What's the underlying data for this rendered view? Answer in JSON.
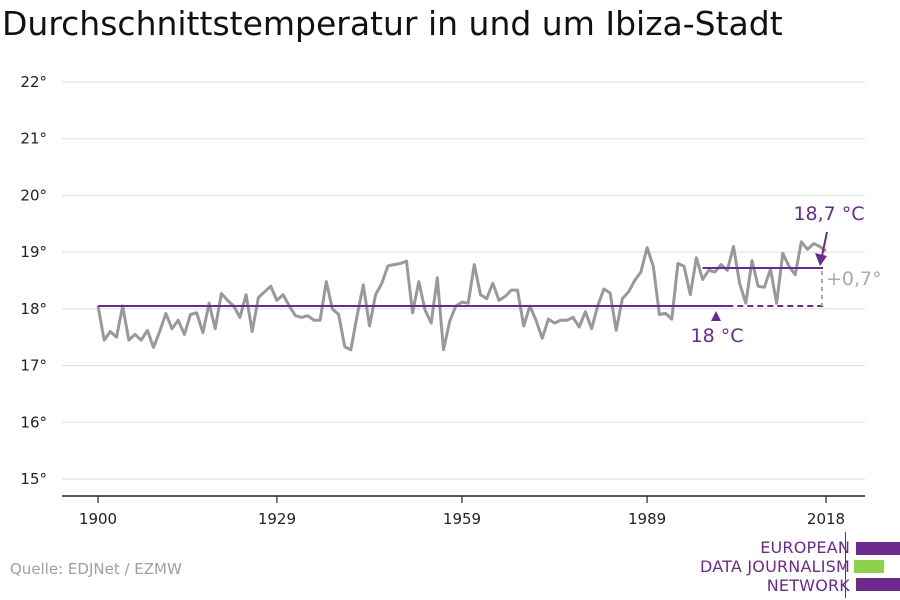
{
  "title": "Durchschnittstemperatur in und um Ibiza-Stadt",
  "source": "Quelle: EDJNet / EZMW",
  "logo": {
    "line1": "EUROPEAN",
    "line2": "DATA JOURNALISM",
    "line3": "NETWORK"
  },
  "colors": {
    "series": "#999999",
    "reference": "#6b2a8c",
    "grid": "#dddddd",
    "axis": "#222222",
    "diff": "#aaaaaa"
  },
  "chart_data": {
    "type": "line",
    "title": "Durchschnittstemperatur in und um Ibiza-Stadt",
    "xlabel": "",
    "ylabel": "",
    "xlim": [
      1900,
      2018
    ],
    "ylim": [
      15,
      22
    ],
    "x_ticks": [
      1900,
      1929,
      1959,
      1989,
      2018
    ],
    "y_ticks": [
      15,
      16,
      17,
      18,
      19,
      20,
      21,
      22
    ],
    "y_tick_labels": [
      "15°",
      "16°",
      "17°",
      "18°",
      "19°",
      "20°",
      "21°",
      "22°"
    ],
    "grid": "horizontal",
    "series": [
      {
        "x": [
          1900,
          1901,
          1902,
          1903,
          1904,
          1905,
          1906,
          1907,
          1908,
          1909,
          1910,
          1911,
          1912,
          1913,
          1914,
          1915,
          1916,
          1917,
          1918,
          1919,
          1920,
          1921,
          1922,
          1923,
          1924,
          1925,
          1926,
          1927,
          1928,
          1929,
          1930,
          1931,
          1932,
          1933,
          1934,
          1935,
          1936,
          1937,
          1938,
          1939,
          1940,
          1941,
          1942,
          1943,
          1944,
          1945,
          1946,
          1947,
          1948,
          1949,
          1950,
          1951,
          1952,
          1953,
          1954,
          1955,
          1956,
          1957,
          1958,
          1959,
          1960,
          1961,
          1962,
          1963,
          1964,
          1965,
          1966,
          1967,
          1968,
          1969,
          1970,
          1971,
          1972,
          1973,
          1974,
          1975,
          1976,
          1977,
          1978,
          1979,
          1980,
          1981,
          1982,
          1983,
          1984,
          1985,
          1986,
          1987,
          1988,
          1989,
          1990,
          1991,
          1992,
          1993,
          1994,
          1995,
          1996,
          1997,
          1998,
          1999,
          2000,
          2001,
          2002,
          2003,
          2004,
          2005,
          2006,
          2007,
          2008,
          2009,
          2010,
          2011,
          2012,
          2013,
          2014,
          2015,
          2016,
          2017,
          2018
        ],
        "values": [
          18.05,
          17.45,
          17.6,
          17.5,
          18.05,
          17.45,
          17.55,
          17.45,
          17.62,
          17.32,
          17.6,
          17.92,
          17.65,
          17.8,
          17.55,
          17.9,
          17.93,
          17.58,
          18.1,
          17.65,
          18.27,
          18.15,
          18.05,
          17.85,
          18.25,
          17.6,
          18.2,
          18.3,
          18.4,
          18.15,
          18.25,
          18.05,
          17.88,
          17.85,
          17.88,
          17.8,
          17.8,
          18.48,
          18.0,
          17.9,
          17.33,
          17.28,
          17.88,
          18.42,
          17.7,
          18.25,
          18.45,
          18.76,
          18.78,
          18.8,
          18.84,
          17.93,
          18.48,
          17.98,
          17.75,
          18.55,
          17.28,
          17.78,
          18.05,
          18.12,
          18.1,
          18.78,
          18.25,
          18.18,
          18.45,
          18.15,
          18.22,
          18.33,
          18.33,
          17.7,
          18.05,
          17.8,
          17.48,
          17.82,
          17.75,
          17.8,
          17.8,
          17.85,
          17.68,
          17.95,
          17.65,
          18.05,
          18.35,
          18.28,
          17.62,
          18.18,
          18.3,
          18.5,
          18.65,
          19.08,
          18.75,
          17.9,
          17.92,
          17.82,
          18.8,
          18.75,
          18.25,
          18.9,
          18.52,
          18.68,
          18.65,
          18.78,
          18.68,
          19.1,
          18.45,
          18.1,
          18.85,
          18.4,
          18.38,
          18.7,
          18.1,
          18.98,
          18.75,
          18.6,
          19.18,
          19.05,
          19.15,
          19.1,
          19.02
        ]
      }
    ],
    "reference_lines": [
      {
        "label": "18 °C",
        "value": 18.05,
        "from": 1900,
        "to": 2002
      },
      {
        "label": "18,7 °C",
        "value": 18.72,
        "from": 1998,
        "to": 2018
      }
    ],
    "annotations": [
      {
        "label": "+0,7°"
      }
    ]
  }
}
